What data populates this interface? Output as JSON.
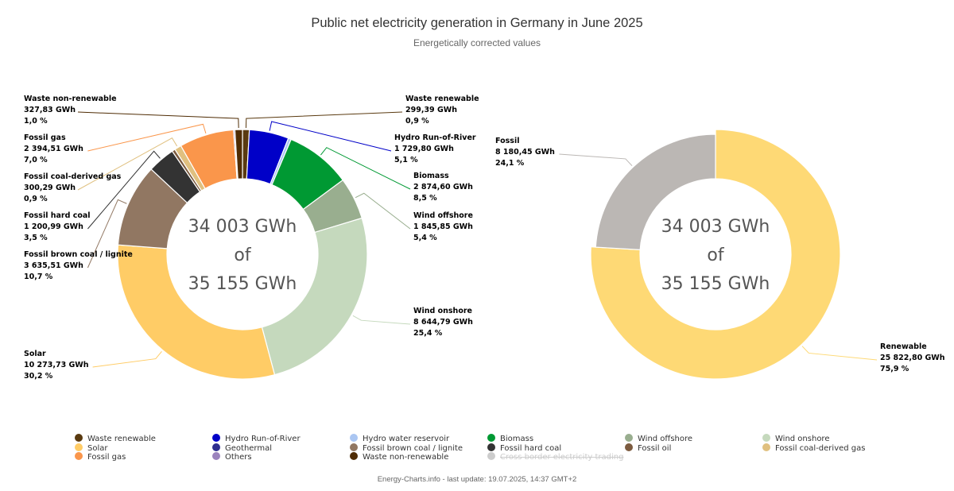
{
  "chart_data": [
    {
      "type": "pie",
      "variant": "donut",
      "title": "Public net electricity generation in Germany in June 2025",
      "subtitle": "Energetically corrected values",
      "unit": "GWh",
      "center_text": [
        "34 003 GWh",
        "of",
        "35 155 GWh"
      ],
      "slices": [
        {
          "name": "Waste renewable",
          "value": 299.39,
          "value_label": "299,39 GWh",
          "percent_label": "0,9 %",
          "color": "#5a3a10",
          "labeled": true
        },
        {
          "name": "Hydro Run-of-River",
          "value": 1729.8,
          "value_label": "1 729,80 GWh",
          "percent_label": "5,1 %",
          "color": "#0000c8",
          "labeled": true
        },
        {
          "name": "Hydro water reservoir",
          "value": 130,
          "color": "#aac6f2",
          "labeled": false
        },
        {
          "name": "Biomass",
          "value": 2874.6,
          "value_label": "2 874,60 GWh",
          "percent_label": "8,5 %",
          "color": "#009933",
          "labeled": true
        },
        {
          "name": "Wind offshore",
          "value": 1845.85,
          "value_label": "1 845,85 GWh",
          "percent_label": "5,4 %",
          "color": "#99ae8f",
          "labeled": true
        },
        {
          "name": "Wind onshore",
          "value": 8644.79,
          "value_label": "8 644,79 GWh",
          "percent_label": "25,4 %",
          "color": "#c5d9bd",
          "labeled": true
        },
        {
          "name": "Solar",
          "value": 10273.73,
          "value_label": "10 273,73 GWh",
          "percent_label": "30,2 %",
          "color": "#ffcc66",
          "labeled": true
        },
        {
          "name": "Fossil brown coal / lignite",
          "value": 3635.51,
          "value_label": "3 635,51 GWh",
          "percent_label": "10,7 %",
          "color": "#917762",
          "labeled": true
        },
        {
          "name": "Fossil hard coal",
          "value": 1200.99,
          "value_label": "1 200,99 GWh",
          "percent_label": "3,5 %",
          "color": "#333333",
          "labeled": true
        },
        {
          "name": "Fossil oil",
          "value": 140,
          "color": "#7c5b3f",
          "labeled": false
        },
        {
          "name": "Fossil coal-derived gas",
          "value": 300.29,
          "value_label": "300,29 GWh",
          "percent_label": "0,9 %",
          "color": "#e0c07f",
          "labeled": true
        },
        {
          "name": "Fossil gas",
          "value": 2394.51,
          "value_label": "2 394,51 GWh",
          "percent_label": "7,0 %",
          "color": "#fa964b",
          "labeled": true
        },
        {
          "name": "Others",
          "value": 60,
          "color": "#9b83bd",
          "labeled": false
        },
        {
          "name": "Waste non-renewable",
          "value": 327.83,
          "value_label": "327,83 GWh",
          "percent_label": "1,0 %",
          "color": "#4f2c04",
          "labeled": true
        }
      ]
    },
    {
      "type": "pie",
      "variant": "donut",
      "unit": "GWh",
      "center_text": [
        "34 003 GWh",
        "of",
        "35 155 GWh"
      ],
      "slices": [
        {
          "name": "Renewable",
          "value": 25822.8,
          "value_label": "25 822,80 GWh",
          "percent_label": "75,9 %",
          "color": "#fed975",
          "labeled": true
        },
        {
          "name": "Fossil",
          "value": 8180.45,
          "value_label": "8 180,45 GWh",
          "percent_label": "24,1 %",
          "color": "#bbb7b4",
          "labeled": true
        }
      ]
    }
  ],
  "header": {
    "title": "Public net electricity generation in Germany in June 2025",
    "subtitle": "Energetically corrected values"
  },
  "legend": [
    {
      "label": "Waste renewable",
      "color": "#5a3a10",
      "hidden": false
    },
    {
      "label": "Hydro Run-of-River",
      "color": "#0000c8",
      "hidden": false
    },
    {
      "label": "Hydro water reservoir",
      "color": "#aac6f2",
      "hidden": false
    },
    {
      "label": "Biomass",
      "color": "#009933",
      "hidden": false
    },
    {
      "label": "Wind offshore",
      "color": "#99ae8f",
      "hidden": false
    },
    {
      "label": "Wind onshore",
      "color": "#c5d9bd",
      "hidden": false
    },
    {
      "label": "Solar",
      "color": "#ffcc66",
      "hidden": false
    },
    {
      "label": "Geothermal",
      "color": "#2e2e8f",
      "hidden": false
    },
    {
      "label": "Fossil brown coal / lignite",
      "color": "#917762",
      "hidden": false
    },
    {
      "label": "Fossil hard coal",
      "color": "#333333",
      "hidden": false
    },
    {
      "label": "Fossil oil",
      "color": "#7c5b3f",
      "hidden": false
    },
    {
      "label": "Fossil coal-derived gas",
      "color": "#e0c07f",
      "hidden": false
    },
    {
      "label": "Fossil gas",
      "color": "#fa964b",
      "hidden": false
    },
    {
      "label": "Others",
      "color": "#9b83bd",
      "hidden": false
    },
    {
      "label": "Waste non-renewable",
      "color": "#4f2c04",
      "hidden": false
    },
    {
      "label": "Cross border electricity trading",
      "color": "#cccccc",
      "hidden": true
    }
  ],
  "footer": "Energy-Charts.info - last update: 19.07.2025, 14:37 GMT+2"
}
